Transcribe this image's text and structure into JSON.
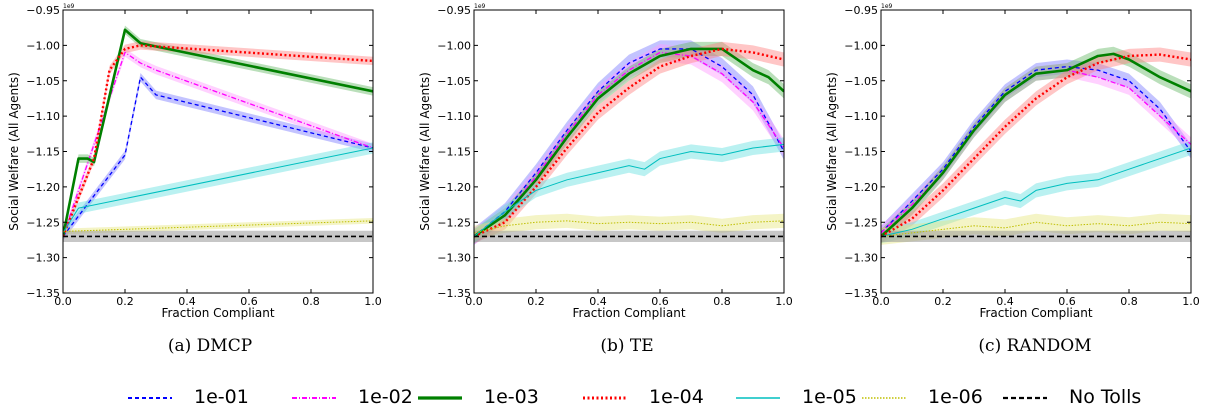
{
  "chart_data": [
    {
      "type": "line",
      "caption_tag": "(a)",
      "caption_name": "DMCP",
      "xlabel": "Fraction Compliant",
      "ylabel": "Social Welfare (All Agents)",
      "y_exponent": "1e9",
      "xlim": [
        0.0,
        1.0
      ],
      "ylim": [
        -1.35,
        -0.95
      ],
      "xticks": [
        "0.0",
        "0.2",
        "0.4",
        "0.6",
        "0.8",
        "1.0"
      ],
      "yticks": [
        "-0.95",
        "-1.00",
        "-1.05",
        "-1.10",
        "-1.15",
        "-1.20",
        "-1.25",
        "-1.30",
        "-1.35"
      ],
      "series": [
        {
          "name": "1e-01",
          "x": [
            0,
            0.2,
            0.25,
            0.3,
            1.0
          ],
          "y": [
            -1.27,
            -1.155,
            -1.045,
            -1.07,
            -1.145
          ],
          "band": 0.006
        },
        {
          "name": "1e-02",
          "x": [
            0,
            0.2,
            0.25,
            0.3,
            1.0
          ],
          "y": [
            -1.27,
            -1.01,
            -1.025,
            -1.035,
            -1.145
          ],
          "band": 0.006
        },
        {
          "name": "1e-03",
          "x": [
            0,
            0.05,
            0.08,
            0.1,
            0.2,
            0.25,
            1.0
          ],
          "y": [
            -1.27,
            -1.16,
            -1.16,
            -1.165,
            -0.978,
            -0.997,
            -1.065
          ],
          "band": 0.006
        },
        {
          "name": "1e-04",
          "x": [
            0,
            0.1,
            0.15,
            0.2,
            0.25,
            1.0
          ],
          "y": [
            -1.27,
            -1.16,
            -1.035,
            -1.005,
            -1.0,
            -1.022
          ],
          "band": 0.006
        },
        {
          "name": "1e-05",
          "x": [
            0,
            0.05,
            1.0
          ],
          "y": [
            -1.265,
            -1.23,
            -1.145
          ],
          "band": 0.008
        },
        {
          "name": "1e-06",
          "x": [
            0,
            1.0
          ],
          "y": [
            -1.263,
            -1.248
          ],
          "band": 0.004
        },
        {
          "name": "No Tolls",
          "x": [
            0,
            1.0
          ],
          "y": [
            -1.27,
            -1.27
          ],
          "band": 0.008
        }
      ]
    },
    {
      "type": "line",
      "caption_tag": "(b)",
      "caption_name": "TE",
      "xlabel": "Fraction Compliant",
      "ylabel": "Social Welfare (All Agents)",
      "y_exponent": "1e9",
      "xlim": [
        0.0,
        1.0
      ],
      "ylim": [
        -1.35,
        -0.95
      ],
      "xticks": [
        "0.0",
        "0.2",
        "0.4",
        "0.6",
        "0.8",
        "1.0"
      ],
      "yticks": [
        "-0.95",
        "-1.00",
        "-1.05",
        "-1.10",
        "-1.15",
        "-1.20",
        "-1.25",
        "-1.30",
        "-1.35"
      ],
      "series": [
        {
          "name": "1e-01",
          "x": [
            0,
            0.1,
            0.2,
            0.3,
            0.4,
            0.5,
            0.6,
            0.7,
            0.8,
            0.9,
            1.0
          ],
          "y": [
            -1.27,
            -1.235,
            -1.18,
            -1.12,
            -1.065,
            -1.025,
            -1.005,
            -1.005,
            -1.03,
            -1.07,
            -1.15
          ],
          "band": 0.012
        },
        {
          "name": "1e-02",
          "x": [
            0,
            0.1,
            0.2,
            0.3,
            0.4,
            0.5,
            0.6,
            0.7,
            0.8,
            0.9,
            1.0
          ],
          "y": [
            -1.27,
            -1.24,
            -1.185,
            -1.125,
            -1.07,
            -1.035,
            -1.01,
            -1.015,
            -1.04,
            -1.08,
            -1.145
          ],
          "band": 0.012
        },
        {
          "name": "1e-03",
          "x": [
            0,
            0.1,
            0.2,
            0.3,
            0.4,
            0.5,
            0.6,
            0.7,
            0.8,
            0.9,
            0.95,
            1.0
          ],
          "y": [
            -1.27,
            -1.24,
            -1.19,
            -1.13,
            -1.075,
            -1.04,
            -1.015,
            -1.005,
            -1.005,
            -1.035,
            -1.045,
            -1.065
          ],
          "band": 0.01
        },
        {
          "name": "1e-04",
          "x": [
            0,
            0.1,
            0.2,
            0.3,
            0.4,
            0.5,
            0.6,
            0.7,
            0.8,
            0.9,
            1.0
          ],
          "y": [
            -1.27,
            -1.25,
            -1.2,
            -1.145,
            -1.095,
            -1.06,
            -1.03,
            -1.015,
            -1.005,
            -1.01,
            -1.02
          ],
          "band": 0.01
        },
        {
          "name": "1e-05",
          "x": [
            0,
            0.1,
            0.2,
            0.3,
            0.4,
            0.5,
            0.55,
            0.6,
            0.7,
            0.8,
            0.9,
            1.0
          ],
          "y": [
            -1.27,
            -1.235,
            -1.205,
            -1.19,
            -1.18,
            -1.17,
            -1.175,
            -1.16,
            -1.15,
            -1.155,
            -1.145,
            -1.14
          ],
          "band": 0.01
        },
        {
          "name": "1e-06",
          "x": [
            0,
            0.1,
            0.2,
            0.3,
            0.4,
            0.5,
            0.6,
            0.7,
            0.8,
            0.9,
            1.0
          ],
          "y": [
            -1.265,
            -1.255,
            -1.25,
            -1.248,
            -1.252,
            -1.25,
            -1.252,
            -1.25,
            -1.255,
            -1.25,
            -1.248
          ],
          "band": 0.01
        },
        {
          "name": "No Tolls",
          "x": [
            0,
            1.0
          ],
          "y": [
            -1.27,
            -1.27
          ],
          "band": 0.008
        }
      ]
    },
    {
      "type": "line",
      "caption_tag": "(c)",
      "caption_name": "RANDOM",
      "xlabel": "Fraction Compliant",
      "ylabel": "Social Welfare (All Agents)",
      "y_exponent": "1e9",
      "xlim": [
        0.0,
        1.0
      ],
      "ylim": [
        -1.35,
        -0.95
      ],
      "xticks": [
        "0.0",
        "0.2",
        "0.4",
        "0.6",
        "0.8",
        "1.0"
      ],
      "yticks": [
        "-0.95",
        "-1.00",
        "-1.05",
        "-1.10",
        "-1.15",
        "-1.20",
        "-1.25",
        "-1.30",
        "-1.35"
      ],
      "series": [
        {
          "name": "1e-01",
          "x": [
            0,
            0.1,
            0.2,
            0.3,
            0.4,
            0.5,
            0.6,
            0.7,
            0.8,
            0.9,
            1.0
          ],
          "y": [
            -1.265,
            -1.22,
            -1.175,
            -1.115,
            -1.065,
            -1.035,
            -1.03,
            -1.035,
            -1.05,
            -1.09,
            -1.15
          ],
          "band": 0.01
        },
        {
          "name": "1e-02",
          "x": [
            0,
            0.1,
            0.2,
            0.3,
            0.4,
            0.5,
            0.6,
            0.7,
            0.8,
            0.9,
            1.0
          ],
          "y": [
            -1.265,
            -1.225,
            -1.18,
            -1.12,
            -1.07,
            -1.04,
            -1.035,
            -1.045,
            -1.06,
            -1.1,
            -1.14
          ],
          "band": 0.01
        },
        {
          "name": "1e-03",
          "x": [
            0,
            0.1,
            0.2,
            0.3,
            0.4,
            0.5,
            0.6,
            0.7,
            0.75,
            0.8,
            0.9,
            1.0
          ],
          "y": [
            -1.27,
            -1.23,
            -1.18,
            -1.12,
            -1.07,
            -1.04,
            -1.035,
            -1.015,
            -1.012,
            -1.02,
            -1.045,
            -1.065
          ],
          "band": 0.01
        },
        {
          "name": "1e-04",
          "x": [
            0,
            0.1,
            0.2,
            0.3,
            0.4,
            0.5,
            0.6,
            0.7,
            0.8,
            0.9,
            1.0
          ],
          "y": [
            -1.27,
            -1.245,
            -1.205,
            -1.16,
            -1.115,
            -1.075,
            -1.045,
            -1.025,
            -1.015,
            -1.013,
            -1.02
          ],
          "band": 0.01
        },
        {
          "name": "1e-05",
          "x": [
            0,
            0.1,
            0.2,
            0.3,
            0.4,
            0.45,
            0.5,
            0.6,
            0.7,
            0.8,
            0.9,
            1.0
          ],
          "y": [
            -1.27,
            -1.26,
            -1.245,
            -1.23,
            -1.215,
            -1.22,
            -1.205,
            -1.195,
            -1.19,
            -1.175,
            -1.16,
            -1.145
          ],
          "band": 0.01
        },
        {
          "name": "1e-06",
          "x": [
            0,
            0.1,
            0.2,
            0.3,
            0.4,
            0.5,
            0.6,
            0.7,
            0.8,
            0.9,
            1.0
          ],
          "y": [
            -1.27,
            -1.265,
            -1.26,
            -1.255,
            -1.258,
            -1.25,
            -1.255,
            -1.252,
            -1.255,
            -1.25,
            -1.252
          ],
          "band": 0.012
        },
        {
          "name": "No Tolls",
          "x": [
            0,
            1.0
          ],
          "y": [
            -1.27,
            -1.27
          ],
          "band": 0.008
        }
      ]
    }
  ],
  "legend": [
    {
      "label": "1e-01",
      "color": "#0000ff",
      "style": "dashed"
    },
    {
      "label": "1e-02",
      "color": "#ff00ff",
      "style": "dashdot"
    },
    {
      "label": "1e-03",
      "color": "#008000",
      "style": "solid-thick"
    },
    {
      "label": "1e-04",
      "color": "#ff0000",
      "style": "dotted-thick"
    },
    {
      "label": "1e-05",
      "color": "#00bfbf",
      "style": "solid-thin"
    },
    {
      "label": "1e-06",
      "color": "#bfbf00",
      "style": "dotted-thin"
    },
    {
      "label": "No Tolls",
      "color": "#000000",
      "style": "dashed-thick"
    }
  ],
  "band_colors": {
    "1e-01": "#7a7aff",
    "1e-02": "#ff9aff",
    "1e-03": "#66b866",
    "1e-04": "#ff8080",
    "1e-05": "#66e0e0",
    "1e-06": "#e6e680",
    "No Tolls": "#999999"
  }
}
